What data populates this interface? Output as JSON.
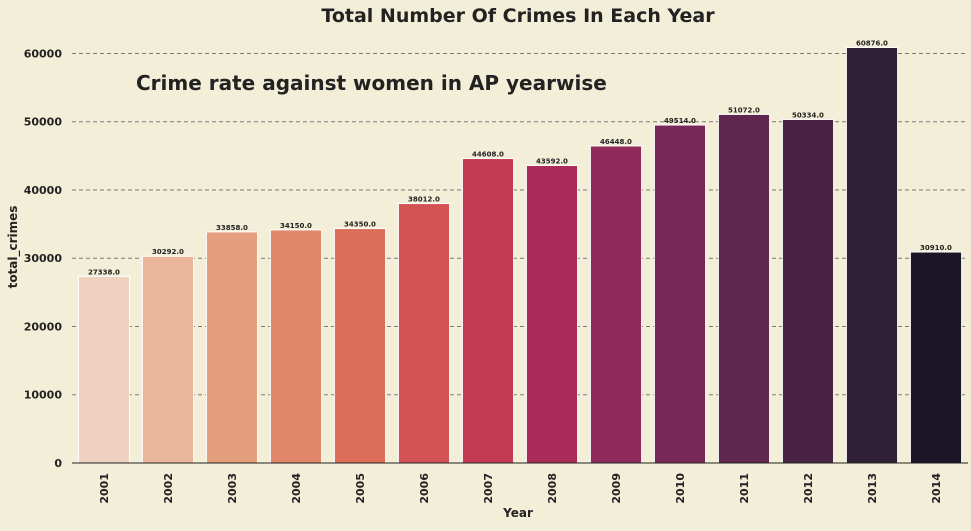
{
  "chart_data": {
    "type": "bar",
    "title": "Total Number Of Crimes In Each Year",
    "annotation": "Crime rate against women in AP yearwise",
    "xlabel": "Year",
    "ylabel": "total_crimes",
    "ylim": [
      0,
      63000
    ],
    "yticks": [
      0,
      10000,
      20000,
      30000,
      40000,
      50000,
      60000
    ],
    "grid": "horizontal dashed",
    "categories": [
      "2001",
      "2002",
      "2003",
      "2004",
      "2005",
      "2006",
      "2007",
      "2008",
      "2009",
      "2010",
      "2011",
      "2012",
      "2013",
      "2014"
    ],
    "values": [
      27338,
      30292,
      33858,
      34150,
      34350,
      38012,
      44608,
      43592,
      46448,
      49514,
      51072,
      50334,
      60876,
      30910
    ],
    "value_labels": [
      "27338.0",
      "30292.0",
      "33858.0",
      "34150.0",
      "34350.0",
      "38012.0",
      "44608.0",
      "43592.0",
      "46448.0",
      "49514.0",
      "51072.0",
      "50334.0",
      "60876.0",
      "30910.0"
    ],
    "colors": [
      "#f0d1c0",
      "#eab69b",
      "#e4a07e",
      "#e08769",
      "#dd6e59",
      "#d35354",
      "#c23b52",
      "#aa2a58",
      "#8f2a5a",
      "#772858",
      "#5f2650",
      "#482345",
      "#302037",
      "#1b1526"
    ]
  }
}
